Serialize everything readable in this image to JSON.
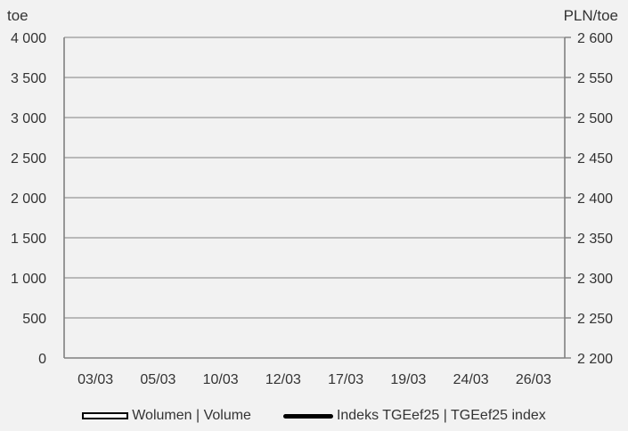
{
  "chart_data": {
    "type": "bar",
    "categories": [
      "03/03",
      "05/03",
      "10/03",
      "12/03",
      "17/03",
      "19/03",
      "24/03",
      "26/03"
    ],
    "series": [
      {
        "name": "Wolumen  |  Volume",
        "axis": "left",
        "type": "bar",
        "values": [
          null,
          null,
          null,
          null,
          null,
          null,
          null,
          null
        ]
      },
      {
        "name": "Indeks TGEef25  |  TGEef25 index",
        "axis": "right",
        "type": "line",
        "values": [
          null,
          null,
          null,
          null,
          null,
          null,
          null,
          null
        ]
      }
    ],
    "y_left": {
      "unit": "toe",
      "ylim": [
        0,
        4000
      ],
      "ticks": [
        0,
        500,
        1000,
        1500,
        2000,
        2500,
        3000,
        3500,
        4000
      ],
      "tick_labels": [
        "0",
        "500",
        "1 000",
        "1 500",
        "2 000",
        "2 500",
        "3 000",
        "3 500",
        "4 000"
      ]
    },
    "y_right": {
      "unit": "PLN/toe",
      "ylim": [
        2200,
        2600
      ],
      "ticks": [
        2200,
        2250,
        2300,
        2350,
        2400,
        2450,
        2500,
        2550,
        2600
      ],
      "tick_labels": [
        "2 200",
        "2 250",
        "2 300",
        "2 350",
        "2 400",
        "2 450",
        "2 500",
        "2 550",
        "2 600"
      ]
    },
    "grid": true,
    "legend_position": "bottom",
    "colors": {
      "background": "#f2f2f2",
      "grid": "#a6a6a6",
      "axis": "#808080",
      "text": "#333333",
      "line": "#000000",
      "bar_fill": "#ffffff"
    }
  }
}
